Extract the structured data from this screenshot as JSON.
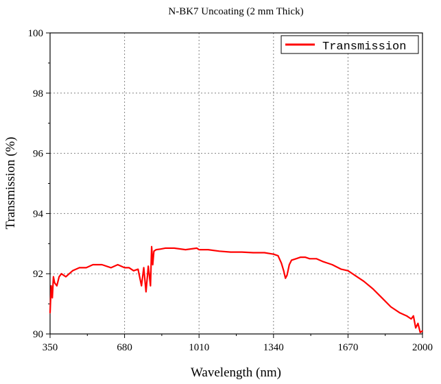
{
  "chart_data": {
    "type": "line",
    "title": "N-BK7 Uncoating (2 mm  Thick)",
    "xlabel": "Wavelength (nm)",
    "ylabel": "Transmission (%)",
    "xlim": [
      350,
      2000
    ],
    "ylim": [
      90,
      100
    ],
    "xticks": [
      "350",
      "680",
      "1010",
      "1340",
      "1670",
      "2000"
    ],
    "yticks": [
      "90",
      "92",
      "94",
      "96",
      "98",
      "100"
    ],
    "grid": true,
    "legend_position": "top-right",
    "series": [
      {
        "name": "Transmission",
        "color": "#ff0000",
        "x": [
          350,
          355,
          360,
          365,
          370,
          380,
          390,
          400,
          420,
          450,
          480,
          510,
          540,
          580,
          620,
          650,
          680,
          700,
          720,
          740,
          755,
          765,
          775,
          785,
          795,
          800,
          805,
          810,
          820,
          840,
          860,
          900,
          950,
          1000,
          1010,
          1050,
          1100,
          1150,
          1200,
          1250,
          1300,
          1340,
          1360,
          1375,
          1385,
          1393,
          1400,
          1410,
          1420,
          1440,
          1460,
          1480,
          1500,
          1530,
          1560,
          1600,
          1640,
          1670,
          1700,
          1740,
          1780,
          1820,
          1860,
          1900,
          1930,
          1950,
          1960,
          1970,
          1980,
          1990,
          2000
        ],
        "y": [
          90.7,
          91.6,
          91.2,
          91.9,
          91.7,
          91.6,
          91.9,
          92.0,
          91.9,
          92.1,
          92.2,
          92.2,
          92.3,
          92.3,
          92.2,
          92.3,
          92.2,
          92.2,
          92.1,
          92.15,
          91.6,
          92.2,
          91.4,
          92.25,
          91.6,
          92.9,
          92.3,
          92.75,
          92.8,
          92.82,
          92.85,
          92.85,
          92.8,
          92.85,
          92.8,
          92.8,
          92.75,
          92.72,
          92.72,
          92.7,
          92.7,
          92.65,
          92.6,
          92.35,
          92.1,
          91.85,
          91.95,
          92.3,
          92.45,
          92.5,
          92.55,
          92.55,
          92.5,
          92.5,
          92.4,
          92.3,
          92.15,
          92.1,
          91.95,
          91.75,
          91.5,
          91.2,
          90.9,
          90.7,
          90.6,
          90.5,
          90.6,
          90.2,
          90.35,
          90.05,
          90.1
        ]
      }
    ]
  }
}
